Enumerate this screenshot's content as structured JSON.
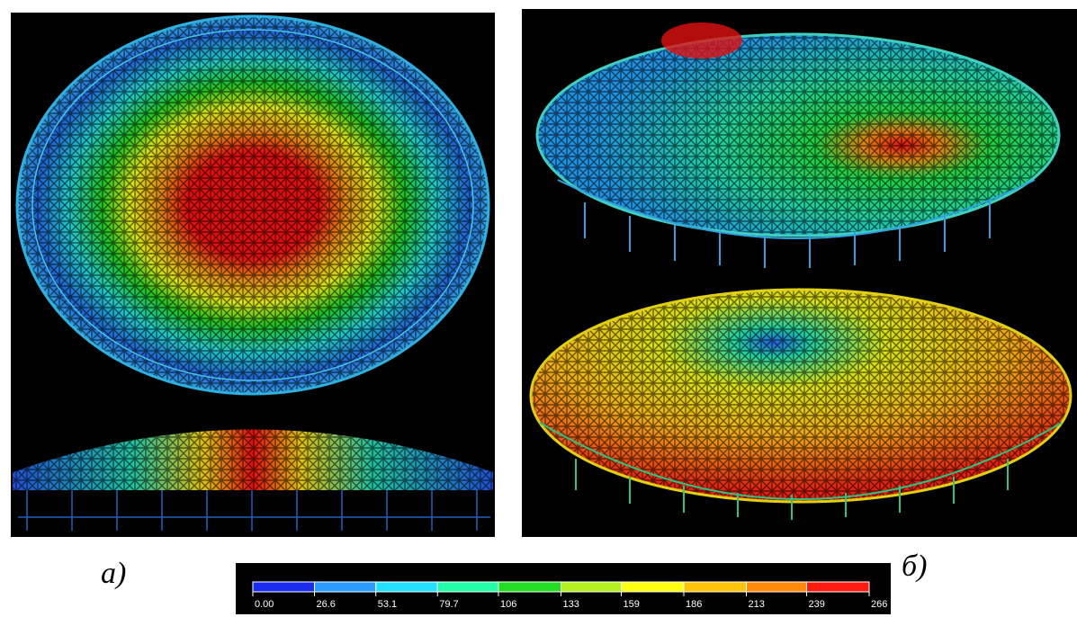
{
  "labels": {
    "left": "а)",
    "right": "б)"
  },
  "legend": {
    "ticks": [
      {
        "value": 0,
        "label": "0.00"
      },
      26.6,
      53.1,
      79.7,
      106,
      133,
      159,
      186,
      213,
      239,
      266
    ],
    "colors": [
      "#1a2cf0",
      "#2a9cff",
      "#22e0ff",
      "#22ffa8",
      "#22dd22",
      "#b4f020",
      "#ffff10",
      "#ffc40a",
      "#ff8a0a",
      "#ff1a10"
    ]
  }
}
